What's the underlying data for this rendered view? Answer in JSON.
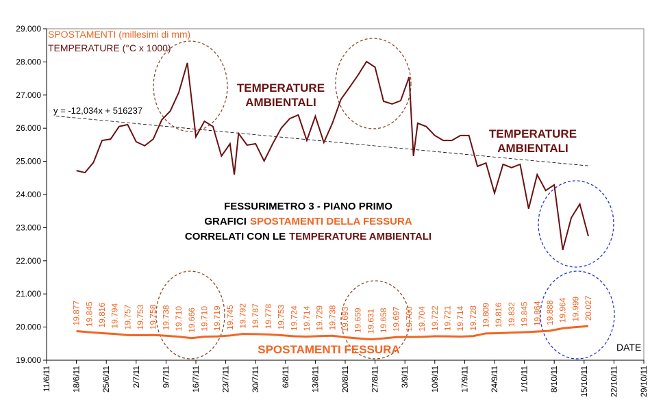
{
  "chart_data": {
    "type": "line",
    "title_lines": [
      [
        "FESSURIMETRO 3 - PIANO PRIMO"
      ],
      [
        "GRAFICI",
        "SPOSTAMENTI DELLA FESSURA"
      ],
      [
        "CORRELATI CON LE",
        "TEMPERATURE AMBIENTALI"
      ]
    ],
    "annotations": [
      [
        "TEMPERATURE",
        "AMBIENTALI"
      ],
      [
        "TEMPERATURE",
        "AMBIENTALI"
      ],
      [
        "SPOSTAMENTI FESSURA"
      ]
    ],
    "x_label": "DATE",
    "ylim": [
      19000,
      29000
    ],
    "yticks": [
      {
        "value": 19000,
        "label": "19.000"
      },
      {
        "value": 20000,
        "label": "20.000"
      },
      {
        "value": 21000,
        "label": "21.000"
      },
      {
        "value": 22000,
        "label": "22.000"
      },
      {
        "value": 23000,
        "label": "23.000"
      },
      {
        "value": 24000,
        "label": "24.000"
      },
      {
        "value": 25000,
        "label": "25.000"
      },
      {
        "value": 26000,
        "label": "26.000"
      },
      {
        "value": 27000,
        "label": "27.000"
      },
      {
        "value": 28000,
        "label": "28.000"
      },
      {
        "value": 29000,
        "label": "29.000"
      }
    ],
    "xlim": [
      "2011-06-11",
      "2011-10-29"
    ],
    "xticks": [
      {
        "value": "2011-06-11",
        "label": "11/6/11"
      },
      {
        "value": "2011-06-18",
        "label": "18/6/11"
      },
      {
        "value": "2011-06-25",
        "label": "25/6/11"
      },
      {
        "value": "2011-07-02",
        "label": "2/7/11"
      },
      {
        "value": "2011-07-09",
        "label": "9/7/11"
      },
      {
        "value": "2011-07-16",
        "label": "16/7/11"
      },
      {
        "value": "2011-07-23",
        "label": "23/7/11"
      },
      {
        "value": "2011-07-30",
        "label": "30/7/11"
      },
      {
        "value": "2011-08-06",
        "label": "6/8/11"
      },
      {
        "value": "2011-08-13",
        "label": "13/8/11"
      },
      {
        "value": "2011-08-20",
        "label": "20/8/11"
      },
      {
        "value": "2011-08-27",
        "label": "27/8/11"
      },
      {
        "value": "2011-09-03",
        "label": "3/9/11"
      },
      {
        "value": "2011-09-10",
        "label": "10/9/11"
      },
      {
        "value": "2011-09-17",
        "label": "17/9/11"
      },
      {
        "value": "2011-09-24",
        "label": "24/9/11"
      },
      {
        "value": "2011-10-01",
        "label": "1/10/11"
      },
      {
        "value": "2011-10-08",
        "label": "8/10/11"
      },
      {
        "value": "2011-10-15",
        "label": "15/10/11"
      },
      {
        "value": "2011-10-22",
        "label": "22/10/11"
      },
      {
        "value": "2011-10-29",
        "label": "29/10/11"
      }
    ],
    "grid": false,
    "series": [
      {
        "name": "SPOSTAMENTI (millesimi di mm)",
        "color": "#f26522",
        "x": [
          "2011-06-18",
          "2011-06-21",
          "2011-06-24",
          "2011-06-27",
          "2011-06-30",
          "2011-07-03",
          "2011-07-06",
          "2011-07-09",
          "2011-07-12",
          "2011-07-15",
          "2011-07-18",
          "2011-07-21",
          "2011-07-24",
          "2011-07-27",
          "2011-07-30",
          "2011-08-02",
          "2011-08-05",
          "2011-08-08",
          "2011-08-11",
          "2011-08-14",
          "2011-08-17",
          "2011-08-20",
          "2011-08-23",
          "2011-08-26",
          "2011-08-29",
          "2011-09-01",
          "2011-09-04",
          "2011-09-07",
          "2011-09-10",
          "2011-09-13",
          "2011-09-16",
          "2011-09-19",
          "2011-09-22",
          "2011-09-25",
          "2011-09-28",
          "2011-10-01",
          "2011-10-04",
          "2011-10-07",
          "2011-10-10",
          "2011-10-13",
          "2011-10-16"
        ],
        "values": [
          19877,
          19845,
          19816,
          19794,
          19757,
          19753,
          19758,
          19738,
          19710,
          19666,
          19710,
          19719,
          19745,
          19792,
          19787,
          19778,
          19753,
          19724,
          19714,
          19729,
          19738,
          19693,
          19659,
          19631,
          19658,
          19697,
          19700,
          19704,
          19722,
          19721,
          19714,
          19728,
          19809,
          19816,
          19832,
          19845,
          19864,
          19888,
          19964,
          19999,
          20027
        ],
        "value_labels": [
          "19.877",
          "19.845",
          "19.816",
          "19.794",
          "19.757",
          "19.753",
          "19.758",
          "19.738",
          "19.710",
          "19.666",
          "19.710",
          "19.719",
          "19.745",
          "19.792",
          "19.787",
          "19.778",
          "19.753",
          "19.724",
          "19.714",
          "19.729",
          "19.738",
          "19.693",
          "19.659",
          "19.631",
          "19.658",
          "19.697",
          "19.700",
          "19.704",
          "19.722",
          "19.721",
          "19.714",
          "19.728",
          "19.809",
          "19.816",
          "19.832",
          "19.845",
          "19.864",
          "19.888",
          "19.964",
          "19.999",
          "20.027"
        ]
      },
      {
        "name": "TEMPERATURE (°C x 1000)",
        "color": "#6b1010",
        "x": [
          "2011-06-18",
          "2011-06-20",
          "2011-06-22",
          "2011-06-24",
          "2011-06-26",
          "2011-06-28",
          "2011-06-30",
          "2011-07-02",
          "2011-07-04",
          "2011-07-06",
          "2011-07-08",
          "2011-07-10",
          "2011-07-12",
          "2011-07-14",
          "2011-07-16",
          "2011-07-18",
          "2011-07-20",
          "2011-07-22",
          "2011-07-24",
          "2011-07-25",
          "2011-07-26",
          "2011-07-28",
          "2011-07-30",
          "2011-08-01",
          "2011-08-03",
          "2011-08-05",
          "2011-08-07",
          "2011-08-09",
          "2011-08-11",
          "2011-08-13",
          "2011-08-15",
          "2011-08-17",
          "2011-08-19",
          "2011-08-21",
          "2011-08-23",
          "2011-08-25",
          "2011-08-27",
          "2011-08-29",
          "2011-08-31",
          "2011-09-02",
          "2011-09-04",
          "2011-09-05",
          "2011-09-06",
          "2011-09-08",
          "2011-09-10",
          "2011-09-12",
          "2011-09-14",
          "2011-09-16",
          "2011-09-18",
          "2011-09-20",
          "2011-09-22",
          "2011-09-24",
          "2011-09-26",
          "2011-09-28",
          "2011-09-30",
          "2011-10-02",
          "2011-10-04",
          "2011-10-06",
          "2011-10-08",
          "2011-10-10",
          "2011-10-12",
          "2011-10-14",
          "2011-10-16"
        ],
        "values": [
          24720,
          24660,
          24970,
          25630,
          25670,
          26050,
          26110,
          25590,
          25470,
          25670,
          26250,
          26520,
          27080,
          27970,
          25740,
          26210,
          26050,
          25160,
          25530,
          24600,
          25840,
          25490,
          25530,
          25010,
          25530,
          26000,
          26290,
          26400,
          25630,
          26360,
          25570,
          26150,
          26870,
          27230,
          27600,
          28010,
          27840,
          26810,
          26730,
          26830,
          27550,
          25160,
          26150,
          26050,
          25780,
          25630,
          25630,
          25780,
          25780,
          24850,
          24950,
          24040,
          24910,
          24810,
          24910,
          23570,
          24600,
          24120,
          24290,
          22330,
          23300,
          23710,
          22740
        ]
      }
    ],
    "trendline": {
      "label": "y = -12,034x + 516237",
      "slope": -12.034,
      "intercept": 516237,
      "color": "#000000"
    }
  }
}
